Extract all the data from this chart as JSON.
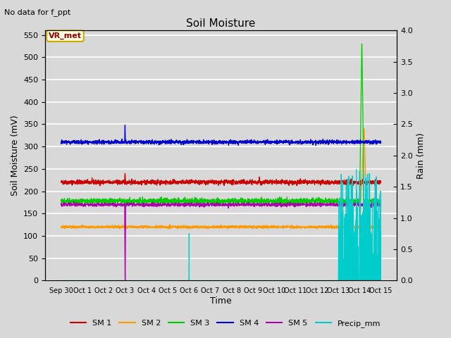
{
  "title": "Soil Moisture",
  "top_left_text": "No data for f_ppt",
  "annotation_text": "VR_met",
  "xlabel": "Time",
  "ylabel_left": "Soil Moisture (mV)",
  "ylabel_right": "Rain (mm)",
  "ylim_left": [
    0,
    560
  ],
  "ylim_right": [
    0,
    4.0
  ],
  "yticks_left": [
    0,
    50,
    100,
    150,
    200,
    250,
    300,
    350,
    400,
    450,
    500,
    550
  ],
  "yticks_right": [
    0.0,
    0.5,
    1.0,
    1.5,
    2.0,
    2.5,
    3.0,
    3.5,
    4.0
  ],
  "background_color": "#d8d8d8",
  "plot_bg_color": "#d8d8d8",
  "grid_color": "white",
  "sm1_color": "#cc0000",
  "sm2_color": "#ff9900",
  "sm3_color": "#00cc00",
  "sm4_color": "#0000cc",
  "sm5_color": "#aa00aa",
  "precip_color": "#00cccc",
  "sm1_level": 220,
  "sm2_level": 120,
  "sm3_level": 178,
  "sm4_level": 310,
  "sm5_level": 170,
  "num_days": 15,
  "legend_labels": [
    "SM 1",
    "SM 2",
    "SM 3",
    "SM 4",
    "SM 5",
    "Precip_mm"
  ],
  "xtick_labels": [
    "Sep 30",
    "Oct 1",
    "Oct 2",
    "Oct 3",
    "Oct 4",
    "Oct 5",
    "Oct 6",
    "Oct 7",
    "Oct 8",
    "Oct 9",
    "Oct 10",
    "Oct 11",
    "Oct 12",
    "Oct 13",
    "Oct 14",
    "Oct 15"
  ]
}
